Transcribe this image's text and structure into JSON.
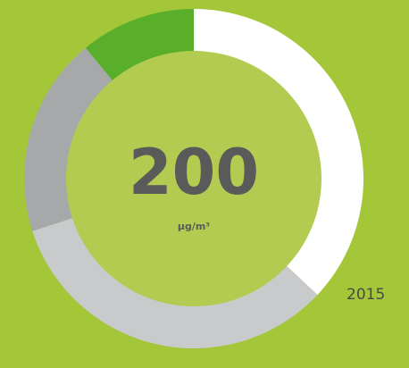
{
  "chart_data": {
    "type": "donut",
    "values": [
      37,
      33,
      19,
      11
    ],
    "colors": [
      "#ffffff",
      "#c8cacb",
      "#a6a8a9",
      "#5aaf2a"
    ],
    "center_value": "200",
    "center_unit": "µg/m³",
    "label": "2015"
  }
}
